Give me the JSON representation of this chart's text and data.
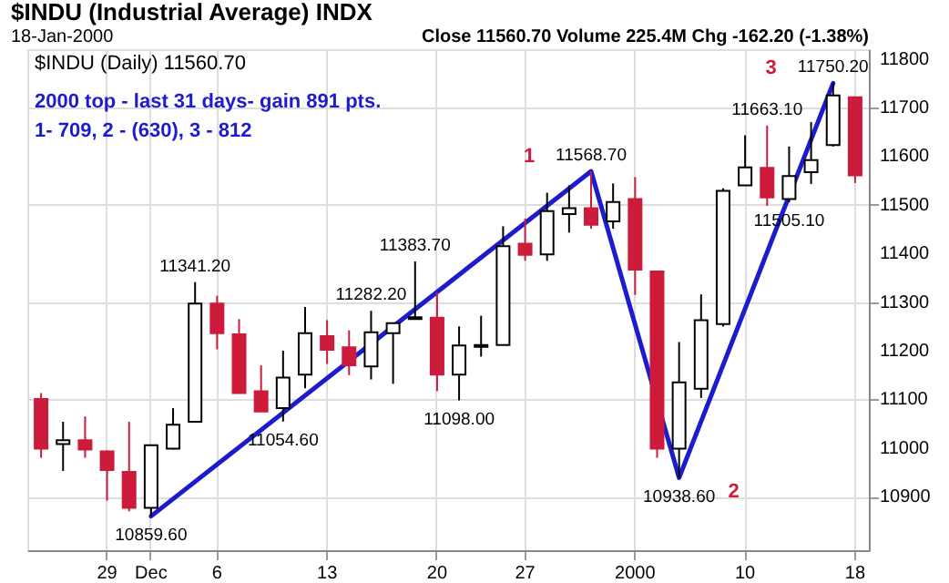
{
  "chart_data": {
    "type": "candlestick",
    "title": "$INDU (Industrial Average) INDX",
    "subtitle": "18-Jan-2000",
    "annotations": [
      "Close 11560.70 Volume 225.4M Chg -162.20 (-1.38%)",
      "$INDU (Daily) 11560.70",
      "2000 top - last 31 days- gain 891 pts.",
      "1- 709, 2 - (630), 3 - 812",
      "1",
      "2",
      "3"
    ],
    "categories": [
      null,
      null,
      null,
      "29",
      null,
      "Dec",
      null,
      null,
      "6",
      null,
      null,
      null,
      null,
      "13",
      null,
      null,
      null,
      null,
      "20",
      null,
      null,
      null,
      "27",
      null,
      null,
      null,
      null,
      "2000",
      null,
      null,
      null,
      null,
      "10",
      null,
      null,
      null,
      null,
      "18"
    ],
    "ohlc": [
      [
        11101,
        11113,
        10980,
        10999
      ],
      [
        11008,
        11054,
        10953,
        11016
      ],
      [
        11016,
        11065,
        10980,
        10997
      ],
      [
        10993,
        10995,
        10892,
        10955
      ],
      [
        10951,
        11054,
        10870,
        10877
      ],
      [
        10877,
        11006,
        10859.6,
        11006
      ],
      [
        10999,
        11082,
        10997,
        11048
      ],
      [
        11054,
        11341.2,
        11054,
        11297
      ],
      [
        11297,
        11313,
        11203,
        11236
      ],
      [
        11234,
        11265,
        11113,
        11113
      ],
      [
        11117,
        11170,
        11075,
        11075
      ],
      [
        11082,
        11200,
        11054.6,
        11145
      ],
      [
        11151,
        11290,
        11123,
        11236
      ],
      [
        11230,
        11263,
        11173,
        11202
      ],
      [
        11207,
        11242,
        11150,
        11170
      ],
      [
        11168,
        11282.2,
        11141,
        11238
      ],
      [
        11236,
        11257,
        11132,
        11257
      ],
      [
        11265,
        11383.7,
        11265,
        11269
      ],
      [
        11268,
        11320,
        11117,
        11151
      ],
      [
        11151,
        11250,
        11098,
        11211
      ],
      [
        11208,
        11272,
        11188,
        11212
      ],
      [
        11212,
        11456,
        11212,
        11415
      ],
      [
        11420,
        11472,
        11385,
        11397
      ],
      [
        11398,
        11525,
        11385,
        11487
      ],
      [
        11481,
        11540,
        11443,
        11493
      ],
      [
        11493,
        11568.7,
        11451,
        11459
      ],
      [
        11466,
        11544,
        11451,
        11506
      ],
      [
        11512,
        11557,
        11315,
        11367
      ],
      [
        11363,
        11363,
        10980,
        10999
      ],
      [
        10999,
        11218,
        10938.6,
        11135
      ],
      [
        11122,
        11316,
        11103,
        11263
      ],
      [
        11255,
        11534,
        11250,
        11529
      ],
      [
        11540,
        11643,
        11540,
        11577
      ],
      [
        11576,
        11663.1,
        11498,
        11515
      ],
      [
        11512,
        11620,
        11505.1,
        11559
      ],
      [
        11567,
        11670,
        11543,
        11592
      ],
      [
        11623,
        11750.2,
        11620,
        11725
      ],
      [
        11721,
        11721,
        11545,
        11560.7
      ]
    ],
    "colors": [
      "#cc1b3b",
      "#ffffff",
      "#cc1b3b",
      "#cc1b3b",
      "#cc1b3b",
      "#ffffff",
      "#ffffff",
      "#ffffff",
      "#cc1b3b",
      "#cc1b3b",
      "#cc1b3b",
      "#ffffff",
      "#ffffff",
      "#cc1b3b",
      "#cc1b3b",
      "#ffffff",
      "#ffffff",
      "#ffffff",
      "#cc1b3b",
      "#ffffff",
      "#ffffff",
      "#ffffff",
      "#cc1b3b",
      "#ffffff",
      "#ffffff",
      "#cc1b3b",
      "#ffffff",
      "#cc1b3b",
      "#cc1b3b",
      "#ffffff",
      "#ffffff",
      "#ffffff",
      "#ffffff",
      "#cc1b3b",
      "#ffffff",
      "#ffffff",
      "#ffffff",
      "#cc1b3b"
    ],
    "value_labels": [
      null,
      null,
      null,
      null,
      null,
      "10859.60",
      null,
      "11341.20",
      null,
      null,
      null,
      "11054.60",
      null,
      null,
      null,
      "11282.20",
      null,
      "11383.70",
      null,
      "11098.00",
      null,
      null,
      null,
      null,
      null,
      "11568.70",
      null,
      null,
      null,
      "10938.60",
      null,
      null,
      null,
      "11663.10",
      "11505.10",
      null,
      "11750.20",
      null
    ],
    "series": [
      {
        "type": "line",
        "color": "#1c1ccc",
        "line_style": "solid",
        "values": [
          null,
          null,
          null,
          null,
          null,
          10860,
          null,
          null,
          null,
          null,
          null,
          null,
          null,
          null,
          null,
          null,
          null,
          null,
          null,
          null,
          null,
          null,
          null,
          null,
          null,
          11569,
          null,
          null,
          null,
          10939,
          null,
          null,
          null,
          null,
          null,
          null,
          11750,
          null
        ]
      }
    ],
    "ylim": [
      10790,
      11820
    ],
    "yticks": [
      10900,
      11000,
      11100,
      11200,
      11300,
      11400,
      11500,
      11600,
      11700,
      11800
    ],
    "grid": true
  }
}
